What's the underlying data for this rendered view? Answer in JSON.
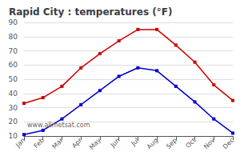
{
  "chart_data": {
    "type": "line",
    "title": "Rapid City : temperatures (°F)",
    "categories": [
      "Jan",
      "Feb",
      "Mar",
      "Apr",
      "May",
      "Jun",
      "Jul",
      "Aug",
      "Sep",
      "Oct",
      "Nov",
      "Dec"
    ],
    "series": [
      {
        "color": "#cc0000",
        "values": [
          33,
          37,
          45,
          58,
          68,
          77,
          85,
          85,
          74,
          62,
          46,
          35
        ]
      },
      {
        "color": "#0000cc",
        "values": [
          11,
          14,
          22,
          32,
          42,
          52,
          58,
          56,
          45,
          34,
          22,
          12
        ]
      }
    ],
    "ylim": [
      10,
      90
    ],
    "yticks": [
      10,
      20,
      30,
      40,
      50,
      60,
      70,
      80,
      90
    ],
    "grid": true,
    "marker": "square",
    "annotation": "www.allmetsat.com"
  }
}
